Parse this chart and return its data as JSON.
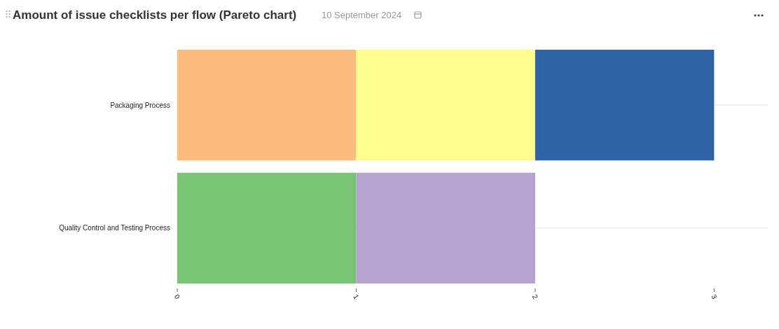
{
  "chart_data": {
    "type": "bar",
    "title": "Amount of issue checklists per flow (Pareto chart)",
    "subtitle": "10 September 2024",
    "orientation": "horizontal",
    "stacked": true,
    "categories": [
      "Packaging Process",
      "Quality Control and Testing Process"
    ],
    "series": [
      {
        "color": "#fdbb7d",
        "values": [
          1,
          null
        ]
      },
      {
        "color": "#fefe8f",
        "values": [
          1,
          null
        ]
      },
      {
        "color": "#3163a7",
        "values": [
          1,
          null
        ]
      },
      {
        "color": "#77c473",
        "values": [
          null,
          1
        ]
      },
      {
        "color": "#b6a3cd",
        "values": [
          null,
          1
        ]
      }
    ],
    "xlim": [
      0,
      3.3
    ],
    "xticks": [
      0,
      1,
      2,
      3
    ],
    "grid": "y"
  }
}
